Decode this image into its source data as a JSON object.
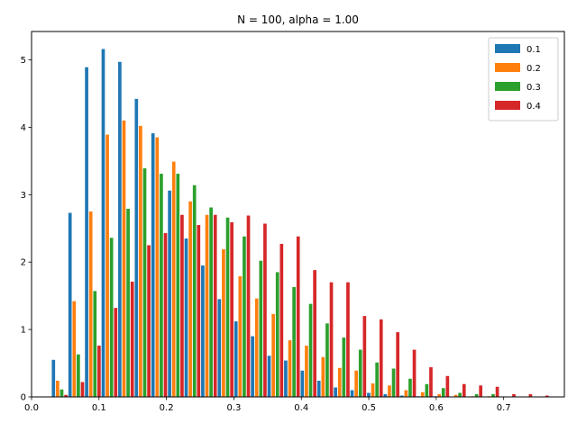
{
  "chart_data": {
    "type": "bar",
    "title": "N = 100, alpha = 1.00",
    "xlabel": "",
    "ylabel": "",
    "xlim": [
      0.0,
      0.79
    ],
    "ylim": [
      0,
      5.42
    ],
    "xticks": [
      "0.0",
      "0.1",
      "0.2",
      "0.3",
      "0.4",
      "0.5",
      "0.6",
      "0.7"
    ],
    "yticks": [
      "0",
      "1",
      "2",
      "3",
      "4",
      "5"
    ],
    "grid": false,
    "legend_position": "top-right",
    "bin_width": 0.0246,
    "bin_starts": [
      0.03,
      0.0546,
      0.0792,
      0.1038,
      0.1284,
      0.153,
      0.1776,
      0.2022,
      0.2268,
      0.2514,
      0.276,
      0.3006,
      0.3252,
      0.3498,
      0.3744,
      0.399,
      0.4236,
      0.4482,
      0.4728,
      0.4974,
      0.522,
      0.5466,
      0.5712,
      0.5958,
      0.6204,
      0.645,
      0.6696,
      0.6942,
      0.7188,
      0.7434
    ],
    "series": [
      {
        "name": "0.1",
        "color": "#1f77b4",
        "values": [
          0.55,
          2.73,
          4.89,
          5.16,
          4.97,
          4.42,
          3.91,
          3.06,
          2.35,
          1.95,
          1.45,
          1.12,
          0.9,
          0.61,
          0.54,
          0.39,
          0.24,
          0.14,
          0.1,
          0.06,
          0.04,
          0.02,
          0.01,
          0.01,
          0.0,
          0.0,
          0.0,
          0.0,
          0.0,
          0.0
        ]
      },
      {
        "name": "0.2",
        "color": "#ff7f0e",
        "values": [
          0.24,
          1.42,
          2.75,
          3.89,
          4.1,
          4.02,
          3.85,
          3.49,
          2.9,
          2.7,
          2.19,
          1.79,
          1.46,
          1.23,
          0.84,
          0.76,
          0.59,
          0.43,
          0.39,
          0.2,
          0.17,
          0.1,
          0.07,
          0.04,
          0.03,
          0.01,
          0.01,
          0.0,
          0.0,
          0.0
        ]
      },
      {
        "name": "0.3",
        "color": "#2ca02c",
        "values": [
          0.11,
          0.63,
          1.57,
          2.36,
          2.79,
          3.39,
          3.31,
          3.31,
          3.14,
          2.81,
          2.66,
          2.38,
          2.02,
          1.85,
          1.63,
          1.38,
          1.09,
          0.88,
          0.7,
          0.51,
          0.42,
          0.27,
          0.19,
          0.13,
          0.06,
          0.04,
          0.04,
          0.0,
          0.0,
          0.0
        ]
      },
      {
        "name": "0.4",
        "color": "#d62728",
        "values": [
          0.03,
          0.22,
          0.76,
          1.32,
          1.71,
          2.25,
          2.43,
          2.7,
          2.55,
          2.7,
          2.59,
          2.69,
          2.57,
          2.27,
          2.38,
          1.88,
          1.7,
          1.7,
          1.2,
          1.15,
          0.96,
          0.7,
          0.44,
          0.31,
          0.19,
          0.17,
          0.15,
          0.04,
          0.04,
          0.02
        ]
      }
    ]
  }
}
